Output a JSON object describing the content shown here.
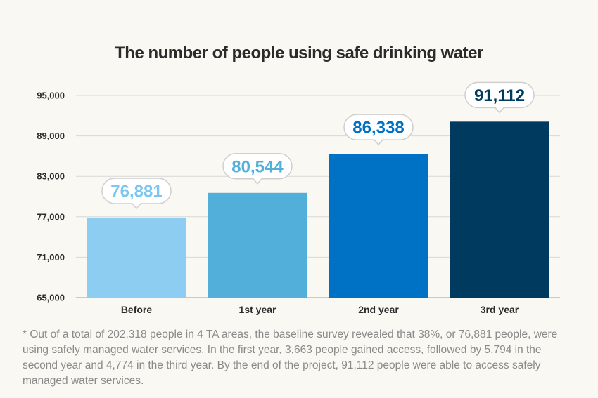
{
  "chart_data": {
    "type": "bar",
    "title": "The number of people using safe drinking water",
    "xlabel": "",
    "ylabel": "",
    "categories": [
      "Before",
      "1st year",
      "2nd year",
      "3rd year"
    ],
    "values": [
      76881,
      80544,
      86338,
      91112
    ],
    "data_labels": [
      "76,881",
      "80,544",
      "86,338",
      "91,112"
    ],
    "ylim": [
      65000,
      95000
    ],
    "yticks": [
      65000,
      71000,
      77000,
      83000,
      89000,
      95000
    ],
    "ytick_labels": [
      "65,000",
      "71,000",
      "77,000",
      "83,000",
      "89,000",
      "95,000"
    ],
    "grid": true,
    "bar_colors": [
      "#8ecdf2",
      "#52afd9",
      "#0072c6",
      "#003a5e"
    ]
  },
  "footnote": "* Out of a total of 202,318 people in 4 TA areas, the baseline survey revealed that 38%, or 76,881 people, were using safely managed water services. In the first year, 3,663 people gained access, followed by 5,794 in the second year and 4,774 in the third year. By the end of the project, 91,112 people were able to access safely managed water services."
}
